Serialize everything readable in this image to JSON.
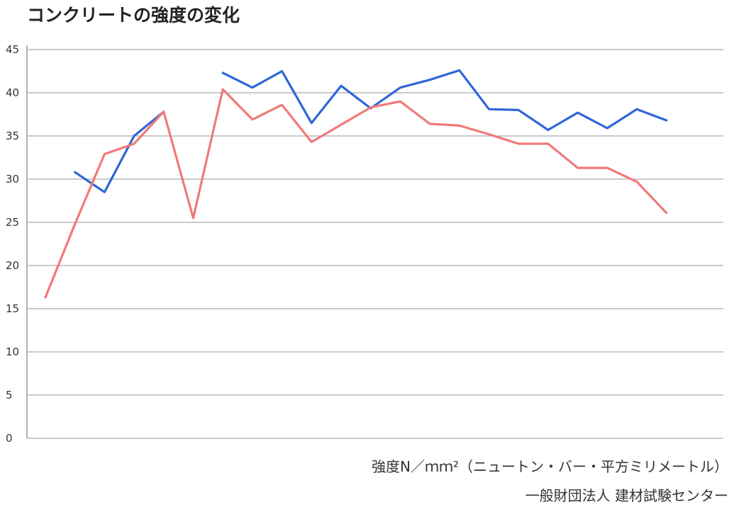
{
  "chart_data": {
    "type": "line",
    "title": "コンクリートの強度の変化",
    "ylim": [
      0,
      45
    ],
    "yticks": [
      "0",
      "5",
      "10",
      "15",
      "20",
      "25",
      "30",
      "35",
      "40",
      "45"
    ],
    "grid": true,
    "x": [
      0,
      1,
      2,
      3,
      4,
      5,
      6,
      7,
      8,
      9,
      10,
      11,
      12,
      13,
      14,
      15,
      16,
      17,
      18,
      19,
      20,
      21,
      22,
      23
    ],
    "series": [
      {
        "color": "#2f66d8",
        "values": [
          null,
          30.8,
          28.5,
          35.0,
          37.8,
          null,
          42.3,
          40.6,
          42.5,
          36.5,
          40.8,
          38.2,
          40.6,
          41.5,
          42.6,
          38.1,
          38.0,
          35.7,
          37.7,
          35.9,
          38.1,
          36.8,
          null,
          null
        ]
      },
      {
        "color": "#f07a78",
        "values": [
          16.3,
          24.8,
          32.9,
          34.1,
          37.8,
          25.5,
          40.4,
          36.9,
          38.6,
          34.3,
          36.3,
          38.3,
          39.0,
          36.4,
          36.2,
          35.2,
          34.1,
          34.1,
          31.3,
          31.3,
          29.7,
          26.1,
          null,
          null
        ]
      }
    ],
    "unit_note": "強度N／ｍｍ²（ニュートン・バー・平方ミリメートル）",
    "source": "一般財団法人 建材試験センター"
  }
}
